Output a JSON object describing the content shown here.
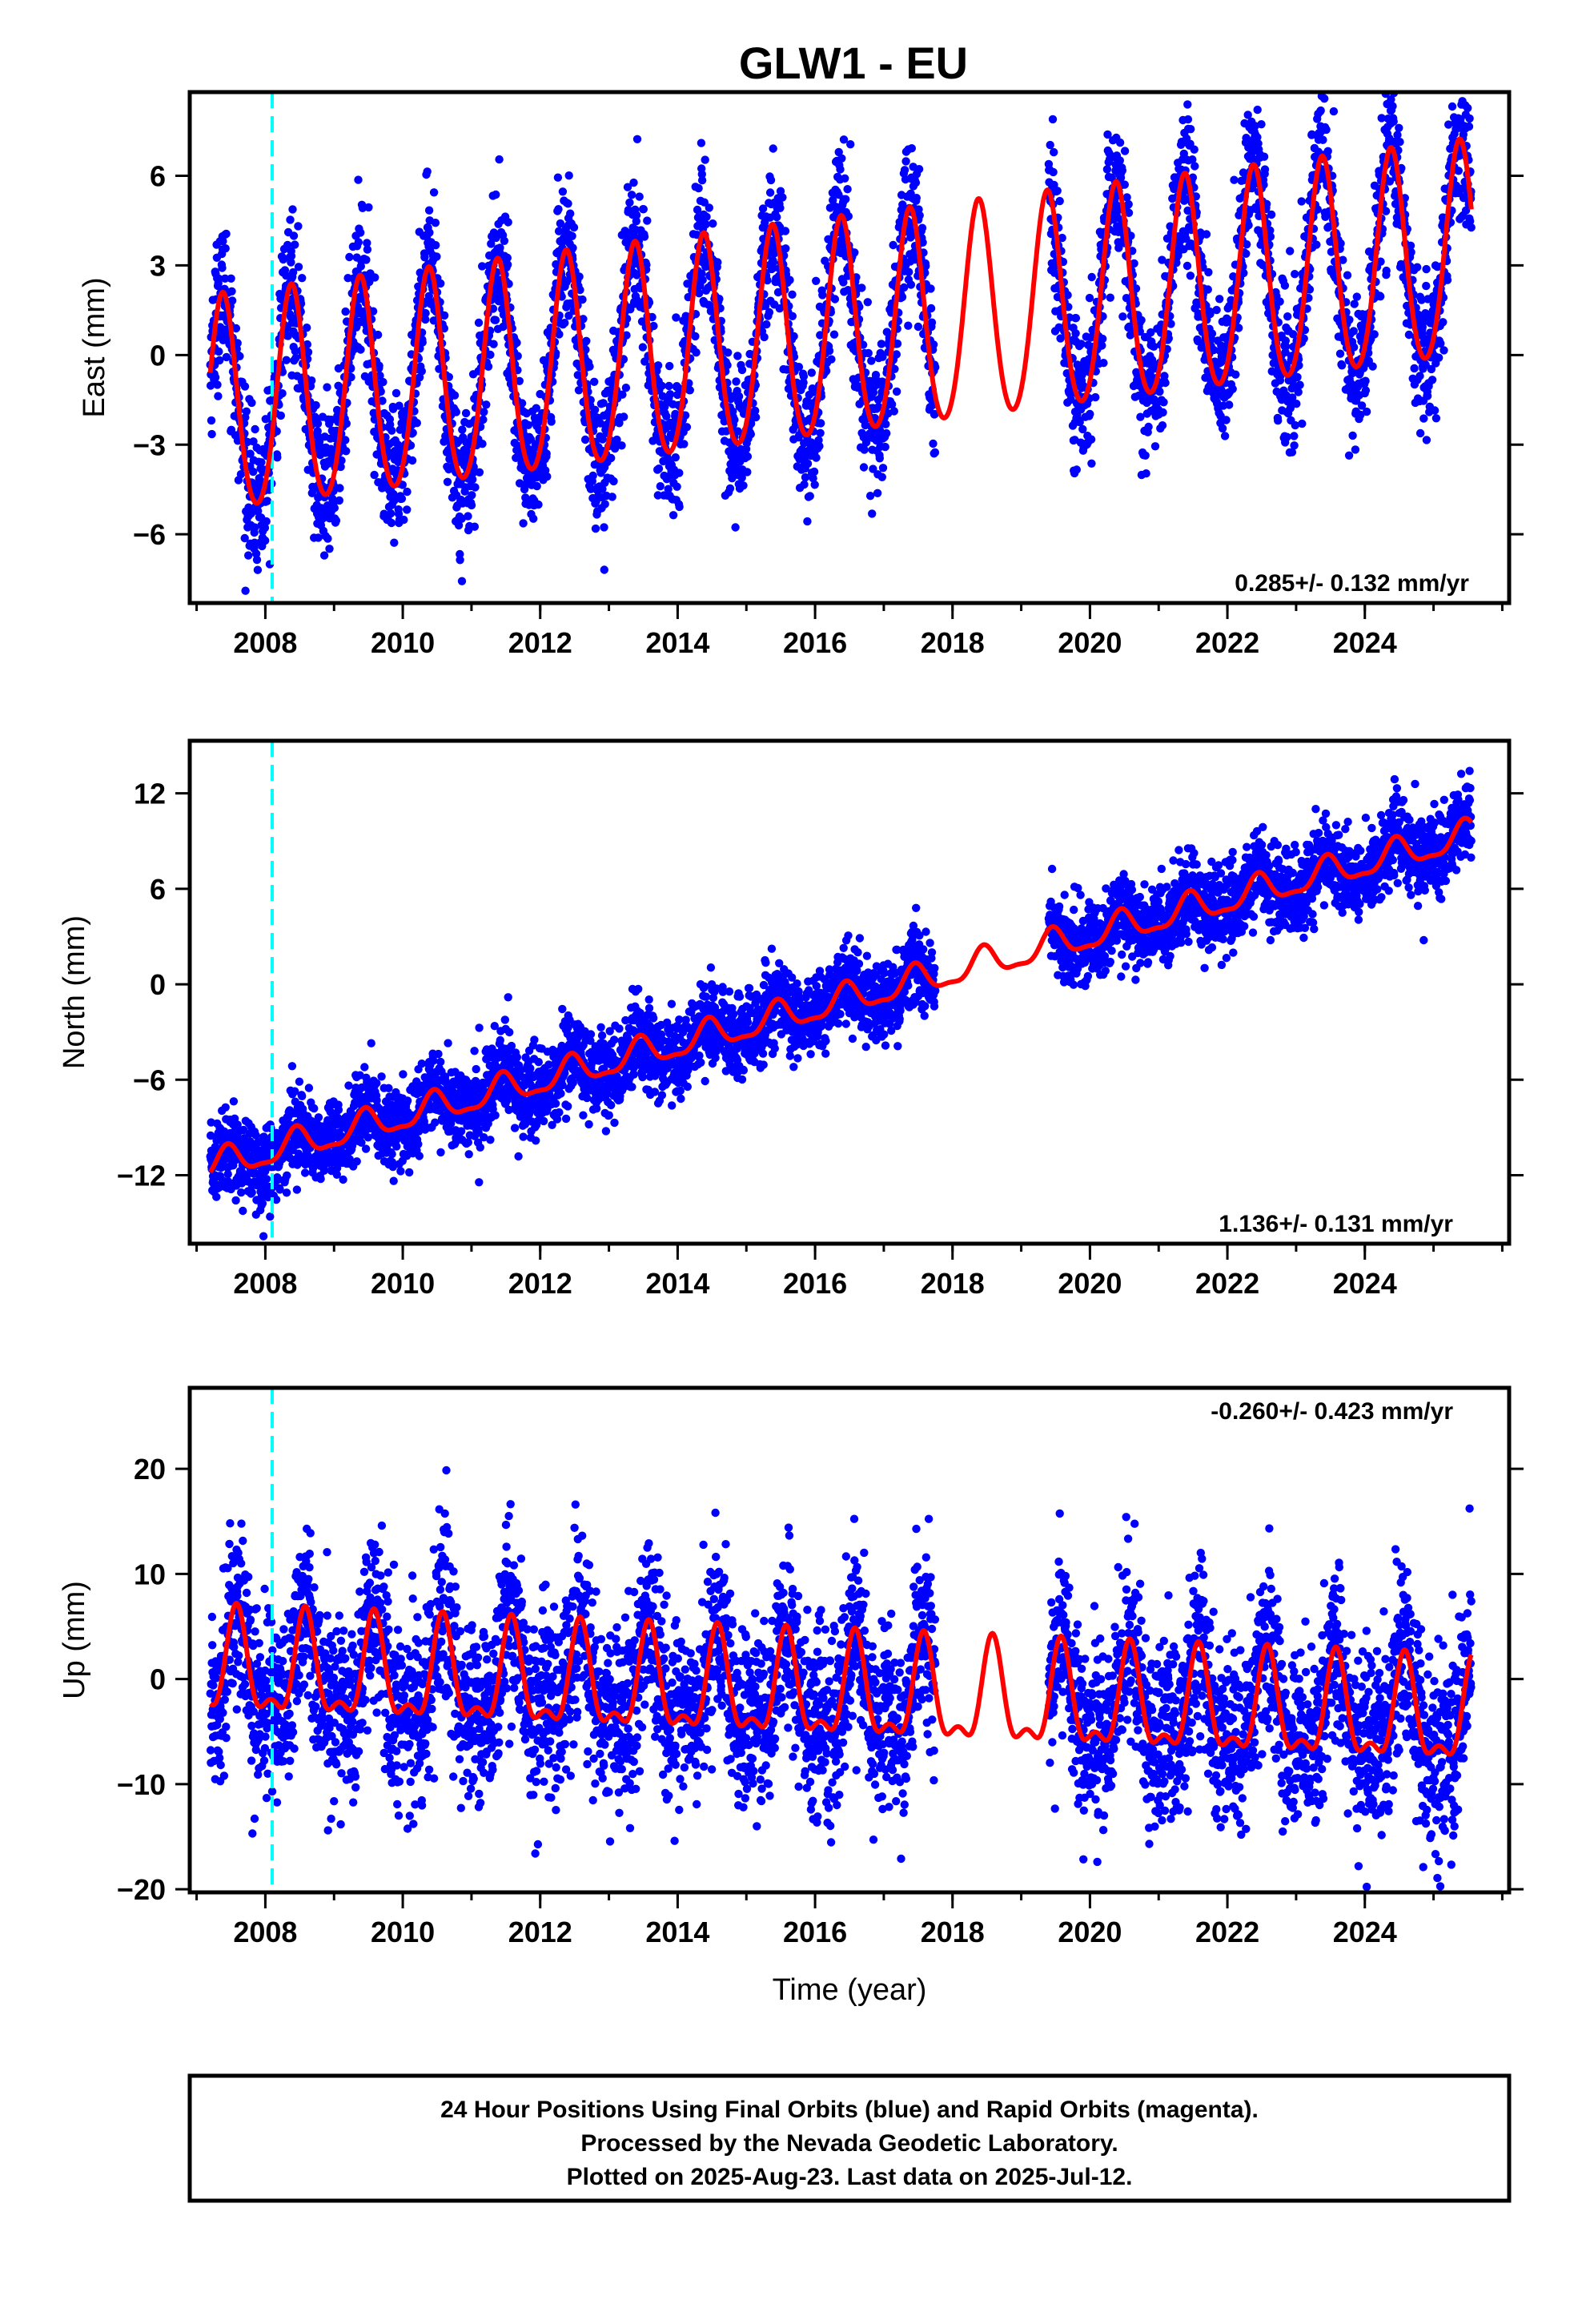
{
  "title": "GLW1 - EU",
  "colors": {
    "data": "#0000ff",
    "model": "#ff0000",
    "event": "#00ffff",
    "axis": "#000000"
  },
  "event_marker_year": 2008.1,
  "chart_data": [
    {
      "type": "scatter",
      "panel": "east",
      "ylabel": "East (mm)",
      "xlabel": "",
      "xlim": [
        2006.9,
        2026.1
      ],
      "ylim": [
        -8.3,
        8.8
      ],
      "xticks": [
        2008,
        2010,
        2012,
        2014,
        2016,
        2018,
        2020,
        2022,
        2024
      ],
      "yticks": [
        -6,
        -3,
        0,
        3,
        6
      ],
      "ytick_labels": [
        "−6",
        "−3",
        "0",
        "3",
        "6"
      ],
      "rate_label": "0.285+/- 0.132 mm/yr",
      "model": {
        "offset": -1.9,
        "rate": 0.285,
        "annual_amp": 3.6,
        "annual_peak": 0.38,
        "semi_amp": 0.35,
        "noise": 1.2
      },
      "segments": [
        [
          2007.2,
          2017.75
        ],
        [
          2019.4,
          2025.55
        ]
      ]
    },
    {
      "type": "scatter",
      "panel": "north",
      "ylabel": "North (mm)",
      "xlabel": "",
      "xlim": [
        2006.9,
        2026.1
      ],
      "ylim": [
        -16.3,
        15.3
      ],
      "xticks": [
        2008,
        2010,
        2012,
        2014,
        2016,
        2018,
        2020,
        2022,
        2024
      ],
      "yticks": [
        -12,
        -6,
        0,
        6,
        12
      ],
      "ytick_labels": [
        "−12",
        "−6",
        "0",
        "6",
        "12"
      ],
      "rate_label": "1.136+/- 0.131 mm/yr",
      "model": {
        "offset": -11.5,
        "rate": 1.136,
        "annual_amp": 0.9,
        "annual_peak": 0.45,
        "semi_amp": 0.3,
        "noise": 1.3
      },
      "segments": [
        [
          2007.2,
          2017.75
        ],
        [
          2019.4,
          2025.55
        ]
      ]
    },
    {
      "type": "scatter",
      "panel": "up",
      "ylabel": "Up (mm)",
      "xlabel": "Time (year)",
      "xlim": [
        2006.9,
        2026.1
      ],
      "ylim": [
        -20.3,
        27.7
      ],
      "xticks": [
        2008,
        2010,
        2012,
        2014,
        2016,
        2018,
        2020,
        2022,
        2024
      ],
      "yticks": [
        -20,
        -10,
        0,
        10,
        20
      ],
      "ytick_labels": [
        "−20",
        "−10",
        "0",
        "10",
        "20"
      ],
      "rate_label": "-0.260+/- 0.423 mm/yr",
      "model": {
        "offset": 0.8,
        "rate": -0.26,
        "annual_amp": 4.5,
        "annual_peak": 0.58,
        "semi_amp": 2.0,
        "noise": 4.3
      },
      "segments": [
        [
          2007.2,
          2017.75
        ],
        [
          2019.4,
          2025.55
        ]
      ]
    }
  ],
  "caption": {
    "line1": "24 Hour Positions Using Final Orbits (blue) and Rapid Orbits (magenta).",
    "line2": "Processed by the Nevada Geodetic Laboratory.",
    "line3": "Plotted on 2025-Aug-23. Last data on 2025-Jul-12."
  }
}
